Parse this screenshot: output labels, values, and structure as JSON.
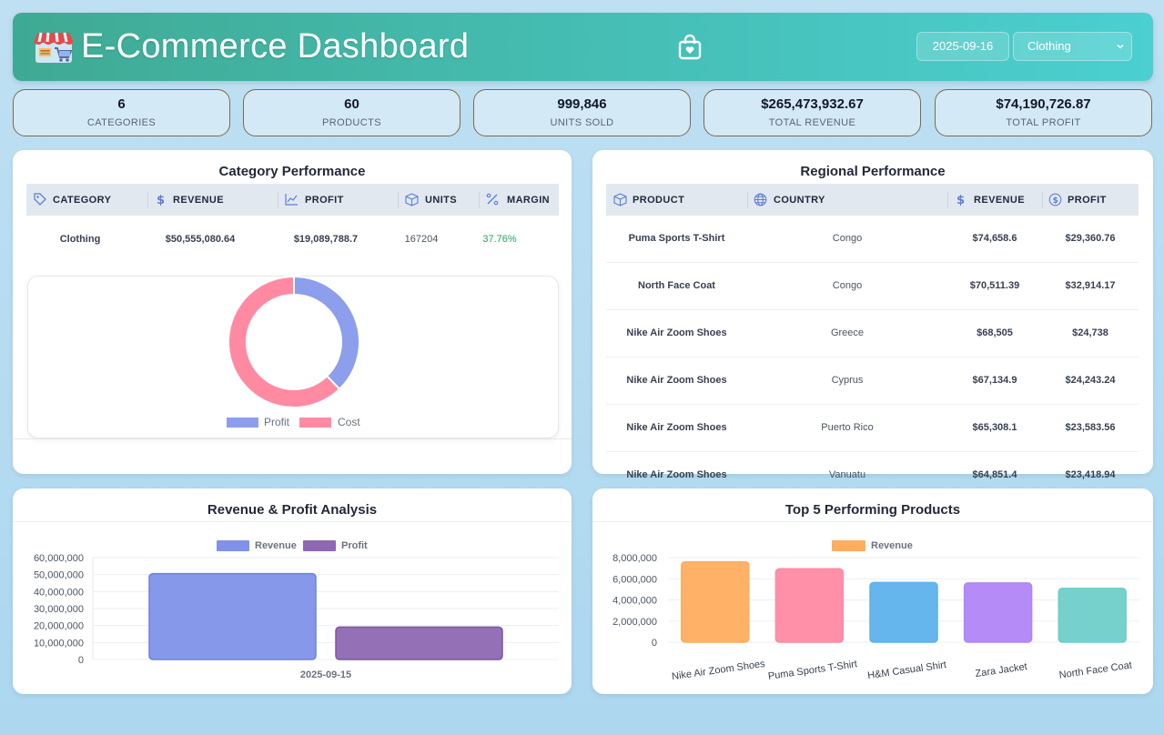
{
  "header": {
    "title": "E-Commerce Dashboard",
    "date": "2025-09-16",
    "category_select": "Clothing",
    "logo_icon": "storefront-icon",
    "bag_icon": "shopping-bag-icon"
  },
  "kpis": [
    {
      "value": "6",
      "label": "CATEGORIES"
    },
    {
      "value": "60",
      "label": "PRODUCTS"
    },
    {
      "value": "999,846",
      "label": "UNITS SOLD"
    },
    {
      "value": "$265,473,932.67",
      "label": "TOTAL REVENUE"
    },
    {
      "value": "$74,190,726.87",
      "label": "TOTAL PROFIT"
    }
  ],
  "category_panel": {
    "title": "Category Performance",
    "columns": [
      "CATEGORY",
      "REVENUE",
      "PROFIT",
      "UNITS",
      "MARGIN"
    ],
    "row": {
      "category": "Clothing",
      "revenue": "$50,555,080.64",
      "profit": "$19,089,788.7",
      "units": "167204",
      "margin": "37.76%"
    },
    "margin_color": "#22a55a"
  },
  "regional_panel": {
    "title": "Regional Performance",
    "columns": [
      "PRODUCT",
      "COUNTRY",
      "REVENUE",
      "PROFIT"
    ],
    "rows": [
      {
        "product": "Puma Sports T-Shirt",
        "country": "Congo",
        "revenue": "$74,658.6",
        "profit": "$29,360.76"
      },
      {
        "product": "North Face Coat",
        "country": "Congo",
        "revenue": "$70,511.39",
        "profit": "$32,914.17"
      },
      {
        "product": "Nike Air Zoom Shoes",
        "country": "Greece",
        "revenue": "$68,505",
        "profit": "$24,738"
      },
      {
        "product": "Nike Air Zoom Shoes",
        "country": "Cyprus",
        "revenue": "$67,134.9",
        "profit": "$24,243.24"
      },
      {
        "product": "Nike Air Zoom Shoes",
        "country": "Puerto Rico",
        "revenue": "$65,308.1",
        "profit": "$23,583.56"
      },
      {
        "product": "Nike Air Zoom Shoes",
        "country": "Vanuatu",
        "revenue": "$64,851.4",
        "profit": "$23,418.94"
      }
    ]
  },
  "rev_panel": {
    "title": "Revenue & Profit Analysis"
  },
  "top_panel": {
    "title": "Top 5 Performing Products"
  },
  "colors": {
    "revenue": "#7f92e8",
    "profit_bar": "#8e68b2",
    "donut_profit": "#8c9eec",
    "donut_cost": "#ff8aa2"
  },
  "chart_data": [
    {
      "type": "pie",
      "variant": "doughnut",
      "labels": [
        "Profit",
        "Cost"
      ],
      "values": [
        19089788.7,
        31465291.94
      ],
      "legend": "bottom"
    },
    {
      "type": "bar",
      "title": "Revenue & Profit Analysis",
      "categories": [
        "2025-09-15"
      ],
      "series": [
        {
          "name": "Revenue",
          "values": [
            50555080.64
          ]
        },
        {
          "name": "Profit",
          "values": [
            19089788.7
          ]
        }
      ],
      "ylim": [
        0,
        60000000
      ],
      "yticks": [
        "60,000,000",
        "50,000,000",
        "40,000,000",
        "30,000,000",
        "20,000,000",
        "10,000,000",
        "0"
      ],
      "legend": "top"
    },
    {
      "type": "bar",
      "title": "Top 5 Performing Products",
      "categories": [
        "Nike Air Zoom Shoes",
        "Puma Sports T-Shirt",
        "H&M Casual Shirt",
        "Zara Jacket",
        "North Face Coat"
      ],
      "series": [
        {
          "name": "Revenue",
          "values": [
            7600000,
            6950000,
            5650000,
            5600000,
            5100000
          ]
        }
      ],
      "bar_colors": [
        "#ffad5f",
        "#ff8aa2",
        "#5cb2ec",
        "#b185f7",
        "#6fcfc9"
      ],
      "ylim": [
        0,
        8000000
      ],
      "yticks": [
        "8,000,000",
        "6,000,000",
        "4,000,000",
        "2,000,000",
        "0"
      ],
      "legend": "top"
    }
  ]
}
